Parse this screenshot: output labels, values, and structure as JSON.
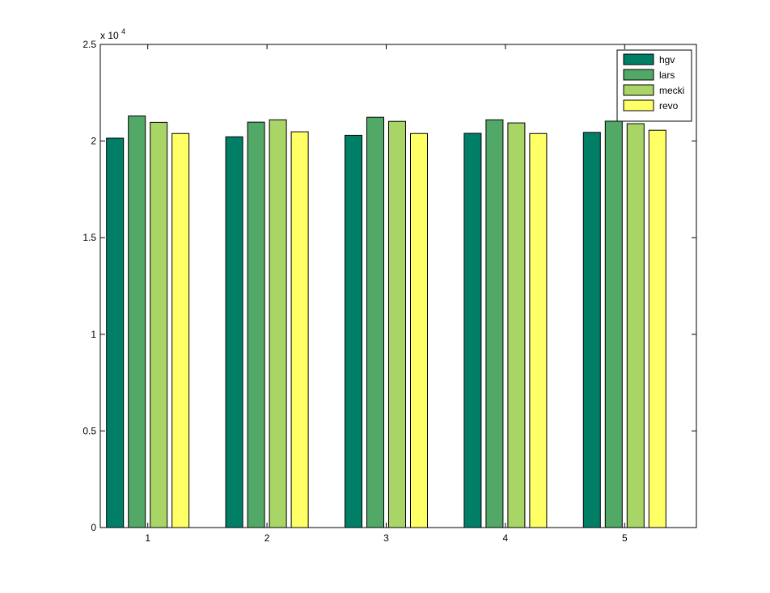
{
  "chart_data": {
    "type": "bar",
    "title": "",
    "xlabel": "",
    "ylabel": "",
    "y_multiplier_base": "x 10",
    "y_multiplier_exponent": "4",
    "categories": [
      "1",
      "2",
      "3",
      "4",
      "5"
    ],
    "series": [
      {
        "name": "hgv",
        "color": "#007f66",
        "values": [
          20150,
          20220,
          20300,
          20400,
          20450
        ]
      },
      {
        "name": "lars",
        "color": "#52a866",
        "values": [
          21300,
          20980,
          21230,
          21100,
          21030
        ]
      },
      {
        "name": "mecki",
        "color": "#a8d566",
        "values": [
          20970,
          21100,
          21020,
          20940,
          20900
        ]
      },
      {
        "name": "revo",
        "color": "#ffff66",
        "values": [
          20390,
          20480,
          20390,
          20390,
          20560
        ]
      }
    ],
    "ylim": [
      0,
      25000
    ],
    "y_ticks": [
      0,
      5000,
      10000,
      15000,
      20000,
      25000
    ],
    "y_tick_labels": [
      "0",
      "0.5",
      "1",
      "1.5",
      "2",
      "2.5"
    ],
    "grid": false,
    "legend_position": "top-right"
  }
}
